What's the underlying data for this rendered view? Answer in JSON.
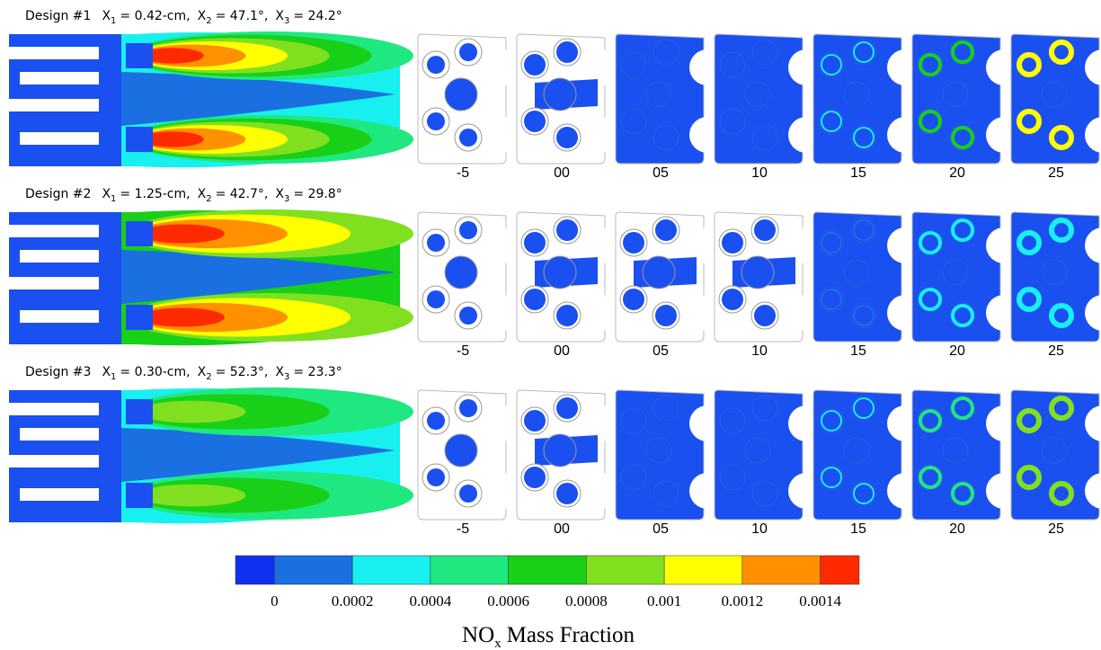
{
  "designs": [
    {
      "label": "Design #1",
      "params": [
        {
          "name": "X",
          "sub": "1",
          "text": "= 0.42-cm,"
        },
        {
          "name": "X",
          "sub": "2",
          "text": "= 47.1°,"
        },
        {
          "name": "X",
          "sub": "3",
          "text": "= 24.2°"
        }
      ],
      "slices": [
        "-5",
        "00",
        "05",
        "10",
        "15",
        "20",
        "25"
      ]
    },
    {
      "label": "Design #2",
      "params": [
        {
          "name": "X",
          "sub": "1",
          "text": "= 1.25-cm,"
        },
        {
          "name": "X",
          "sub": "2",
          "text": "= 42.7°,"
        },
        {
          "name": "X",
          "sub": "3",
          "text": "= 29.8°"
        }
      ],
      "slices": [
        "-5",
        "00",
        "05",
        "10",
        "15",
        "20",
        "25"
      ]
    },
    {
      "label": "Design #3",
      "params": [
        {
          "name": "X",
          "sub": "1",
          "text": "= 0.30-cm,"
        },
        {
          "name": "X",
          "sub": "2",
          "text": "= 52.3°,"
        },
        {
          "name": "X",
          "sub": "3",
          "text": "= 23.3°"
        }
      ],
      "slices": [
        "-5",
        "00",
        "05",
        "10",
        "15",
        "20",
        "25"
      ]
    }
  ],
  "colorbar": {
    "ticks": [
      "0",
      "0.0002",
      "0.0004",
      "0.0006",
      "0.0008",
      "0.001",
      "0.0012",
      "0.0014"
    ],
    "title": {
      "name": "NO",
      "sub": "x",
      "text": "Mass Fraction"
    }
  }
}
